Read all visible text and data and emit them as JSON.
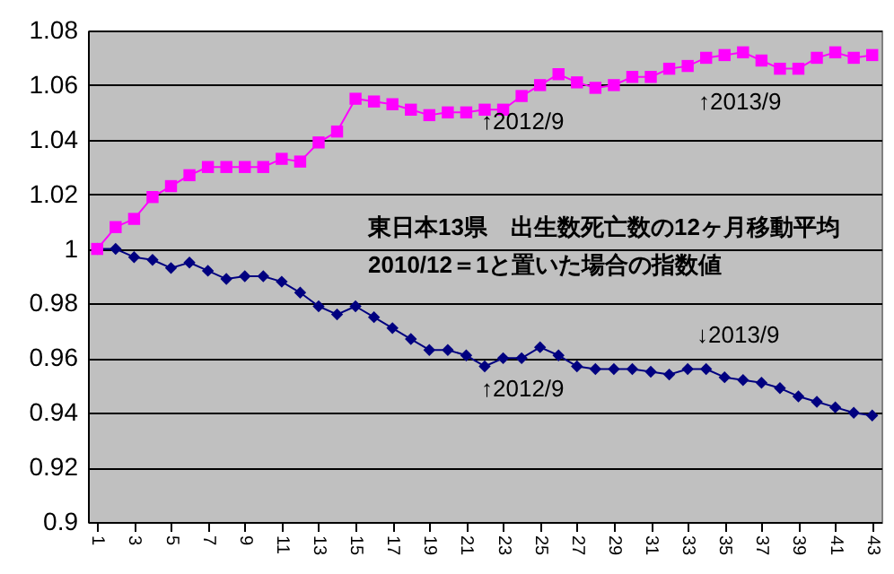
{
  "chart_data": {
    "type": "line",
    "x": [
      1,
      2,
      3,
      4,
      5,
      6,
      7,
      8,
      9,
      10,
      11,
      12,
      13,
      14,
      15,
      16,
      17,
      18,
      19,
      20,
      21,
      22,
      23,
      24,
      25,
      26,
      27,
      28,
      29,
      30,
      31,
      32,
      33,
      34,
      35,
      36,
      37,
      38,
      39,
      40,
      41,
      42,
      43
    ],
    "series": [
      {
        "color": "#ff00ff",
        "marker": "square",
        "values": [
          1.0,
          1.008,
          1.011,
          1.019,
          1.023,
          1.027,
          1.03,
          1.03,
          1.03,
          1.03,
          1.033,
          1.032,
          1.039,
          1.043,
          1.055,
          1.054,
          1.053,
          1.051,
          1.049,
          1.05,
          1.05,
          1.051,
          1.051,
          1.056,
          1.06,
          1.064,
          1.061,
          1.059,
          1.06,
          1.063,
          1.063,
          1.066,
          1.067,
          1.07,
          1.071,
          1.072,
          1.069,
          1.066,
          1.066,
          1.07,
          1.072,
          1.07,
          1.071
        ]
      },
      {
        "color": "#000080",
        "marker": "diamond",
        "values": [
          1.0,
          1.0,
          0.997,
          0.996,
          0.993,
          0.995,
          0.992,
          0.989,
          0.99,
          0.99,
          0.988,
          0.984,
          0.979,
          0.976,
          0.979,
          0.975,
          0.971,
          0.967,
          0.963,
          0.963,
          0.961,
          0.957,
          0.96,
          0.96,
          0.964,
          0.961,
          0.957,
          0.956,
          0.956,
          0.956,
          0.955,
          0.954,
          0.956,
          0.956,
          0.953,
          0.952,
          0.951,
          0.949,
          0.946,
          0.944,
          0.942,
          0.94,
          0.939
        ]
      }
    ],
    "xlim": [
      0.5,
      43.5
    ],
    "xticks": [
      1,
      3,
      5,
      7,
      9,
      11,
      13,
      15,
      17,
      19,
      21,
      23,
      25,
      27,
      29,
      31,
      33,
      35,
      37,
      39,
      41,
      43
    ],
    "ylim": [
      0.9,
      1.08
    ],
    "yticks": [
      0.9,
      0.92,
      0.94,
      0.96,
      0.98,
      1,
      1.02,
      1.04,
      1.06,
      1.08
    ],
    "grid": "y",
    "line_style": "solid",
    "annotations": [
      "↑2012/9",
      "↑2013/9",
      "↑2012/9",
      "↓2013/9",
      "東日本13県　出生数死亡数の12ヶ月移動平均",
      "2010/12＝1と置いた場合の指数値"
    ]
  }
}
